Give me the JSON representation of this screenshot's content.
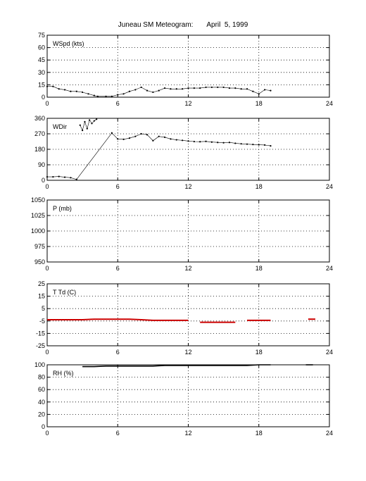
{
  "title": "Juneau SM Meteogram:       April  5, 1999",
  "colors": {
    "axes": "#000000",
    "grid": "#000000",
    "dewpoint": "#cc0000",
    "temperature": "#000000",
    "data": "#000000"
  },
  "chart_data": [
    {
      "type": "scatter",
      "label": "WSpd (kts)",
      "ylim": [
        0,
        75
      ],
      "yticks": [
        0,
        15,
        30,
        45,
        60,
        75
      ],
      "xlim": [
        0,
        24
      ],
      "xticks": [
        0,
        6,
        12,
        18,
        24
      ],
      "grid": true,
      "series": [
        {
          "x": [
            0,
            0.5,
            1,
            1.5,
            2,
            2.5,
            3,
            3.5,
            4,
            4.3,
            5,
            5.5,
            6,
            6.5,
            7,
            7.5,
            8,
            8.5,
            9,
            9.5,
            10,
            10.5,
            11,
            11.5,
            12,
            12.5,
            13,
            13.5,
            14,
            14.5,
            15,
            15.5,
            16,
            16.5,
            17,
            17.5,
            18,
            18.5,
            19
          ],
          "y": [
            13,
            13,
            10,
            9,
            7,
            7,
            6,
            4,
            2,
            1,
            1,
            1,
            3,
            4,
            7,
            9,
            12,
            8,
            6,
            8,
            11,
            10,
            10,
            10,
            11,
            11,
            11,
            12,
            12,
            12,
            12,
            11,
            11,
            10,
            10,
            7,
            4,
            9,
            8
          ]
        }
      ]
    },
    {
      "type": "scatter",
      "label": "WDir",
      "ylim": [
        0,
        360
      ],
      "yticks": [
        0,
        90,
        180,
        270,
        360
      ],
      "xlim": [
        0,
        24
      ],
      "xticks": [
        0,
        6,
        12,
        18,
        24
      ],
      "grid": true,
      "series": [
        {
          "x": [
            0,
            0.5,
            1,
            1.5,
            2,
            2.5,
            5.5,
            6,
            6.5,
            7,
            7.5,
            8,
            8.5,
            9,
            9.5,
            10,
            10.5,
            11,
            11.5,
            12,
            12.5,
            13,
            13.5,
            14,
            14.5,
            15,
            15.5,
            16,
            16.5,
            17,
            17.5,
            18,
            18.5,
            19
          ],
          "y": [
            20,
            20,
            22,
            18,
            15,
            5,
            275,
            240,
            238,
            245,
            255,
            270,
            265,
            230,
            255,
            250,
            240,
            235,
            232,
            228,
            225,
            224,
            226,
            222,
            220,
            218,
            220,
            215,
            212,
            210,
            208,
            206,
            205,
            200
          ]
        },
        {
          "x": [
            2.8,
            3.0,
            3.2,
            3.4,
            3.6,
            3.8,
            4.0,
            4.2
          ],
          "y": [
            320,
            290,
            340,
            300,
            350,
            330,
            345,
            355
          ]
        }
      ]
    },
    {
      "type": "line",
      "label": "P (mb)",
      "ylim": [
        950,
        1050
      ],
      "yticks": [
        950,
        975,
        1000,
        1025,
        1050
      ],
      "xlim": [
        0,
        24
      ],
      "xticks": [
        0,
        6,
        12,
        18,
        24
      ],
      "grid": true,
      "series": []
    },
    {
      "type": "line",
      "label": "T Td (C)",
      "ylim": [
        -25,
        25
      ],
      "yticks": [
        -25,
        -15,
        -5,
        5,
        15,
        25
      ],
      "xlim": [
        0,
        24
      ],
      "xticks": [
        0,
        6,
        12,
        18,
        24
      ],
      "grid": true,
      "series": [
        {
          "x": [
            0,
            1,
            2,
            3,
            4,
            5,
            6,
            7,
            8,
            9,
            10,
            11,
            12
          ],
          "y": [
            -4,
            -4,
            -4,
            -4,
            -3.5,
            -3.5,
            -3.5,
            -3.5,
            -4,
            -4.5,
            -4.5,
            -4.5,
            -4.5
          ]
        },
        {
          "x": [
            13,
            14,
            15,
            16
          ],
          "y": [
            -6,
            -6,
            -6,
            -6
          ]
        },
        {
          "x": [
            17,
            18,
            19
          ],
          "y": [
            -4.5,
            -4.5,
            -4.5
          ]
        },
        {
          "x": [
            22.2,
            22.8
          ],
          "y": [
            -3.5,
            -3.5
          ]
        }
      ]
    },
    {
      "type": "line",
      "label": "RH (%)",
      "ylim": [
        0,
        100
      ],
      "yticks": [
        0,
        20,
        40,
        60,
        80,
        100
      ],
      "xlim": [
        0,
        24
      ],
      "xticks": [
        0,
        6,
        12,
        18,
        24
      ],
      "grid": true,
      "series": [
        {
          "x": [
            3,
            4,
            5,
            6,
            7,
            8,
            9,
            10,
            11,
            12,
            13,
            14,
            15,
            16,
            17,
            18,
            19
          ],
          "y": [
            97,
            97,
            98,
            98,
            98,
            98,
            98,
            99,
            99,
            99,
            99,
            99,
            99,
            99,
            99,
            100,
            100
          ]
        },
        {
          "x": [
            22,
            22.6
          ],
          "y": [
            100,
            100
          ]
        }
      ]
    }
  ]
}
